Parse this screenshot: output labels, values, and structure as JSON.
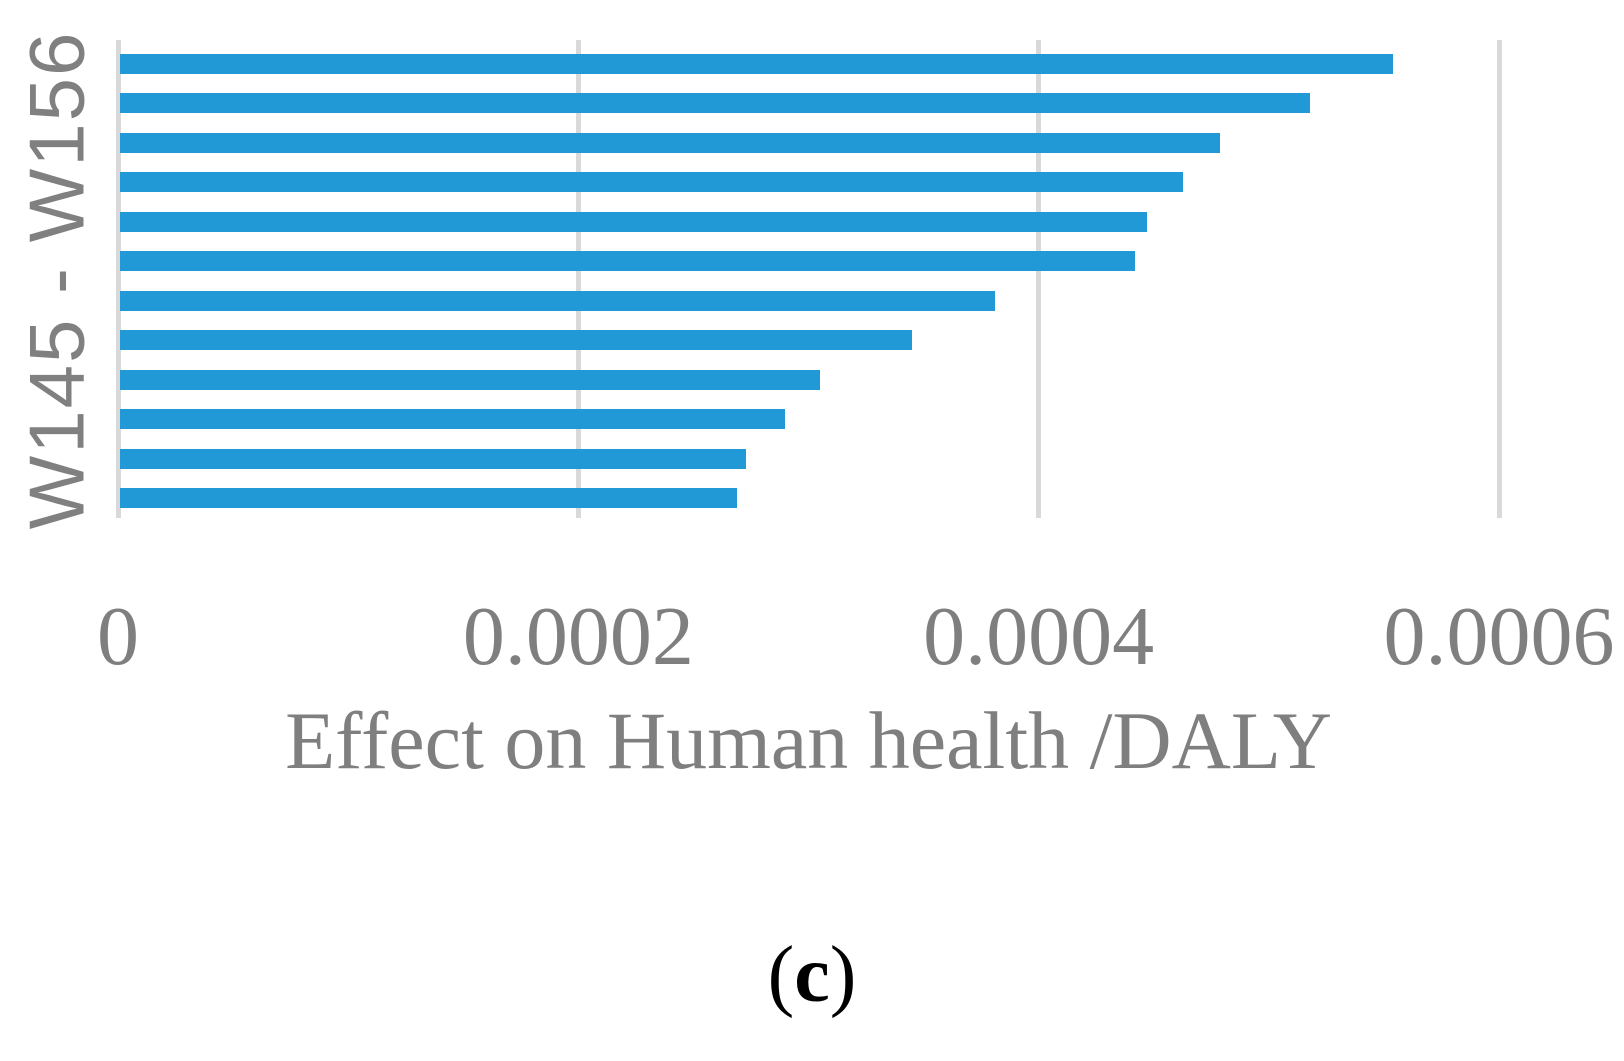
{
  "chart_data": {
    "type": "bar",
    "orientation": "horizontal",
    "title": "",
    "xlabel": "Effect on Human health /DALY",
    "ylabel": "W145 - W156",
    "x_tick_labels": [
      "0",
      "0.0002",
      "0.0004",
      "0.0006"
    ],
    "x_ticks": [
      0,
      0.0002,
      0.0004,
      0.0006
    ],
    "xlim": [
      0,
      0.00065
    ],
    "values": [
      0.000553,
      0.000517,
      0.000478,
      0.000462,
      0.000446,
      0.000441,
      0.00038,
      0.000344,
      0.000304,
      0.000289,
      0.000272,
      0.000268
    ],
    "bar_count": 12,
    "grid": "vertical-only",
    "legend": "none",
    "colors": {
      "bar": "#2199d6",
      "gridline": "#d9d9d9",
      "axis_text": "#7f7f7f",
      "ylabel_text": "#808080",
      "caption_text": "#000000"
    }
  },
  "caption": {
    "open": "(",
    "letter": "c",
    "close": ")"
  }
}
